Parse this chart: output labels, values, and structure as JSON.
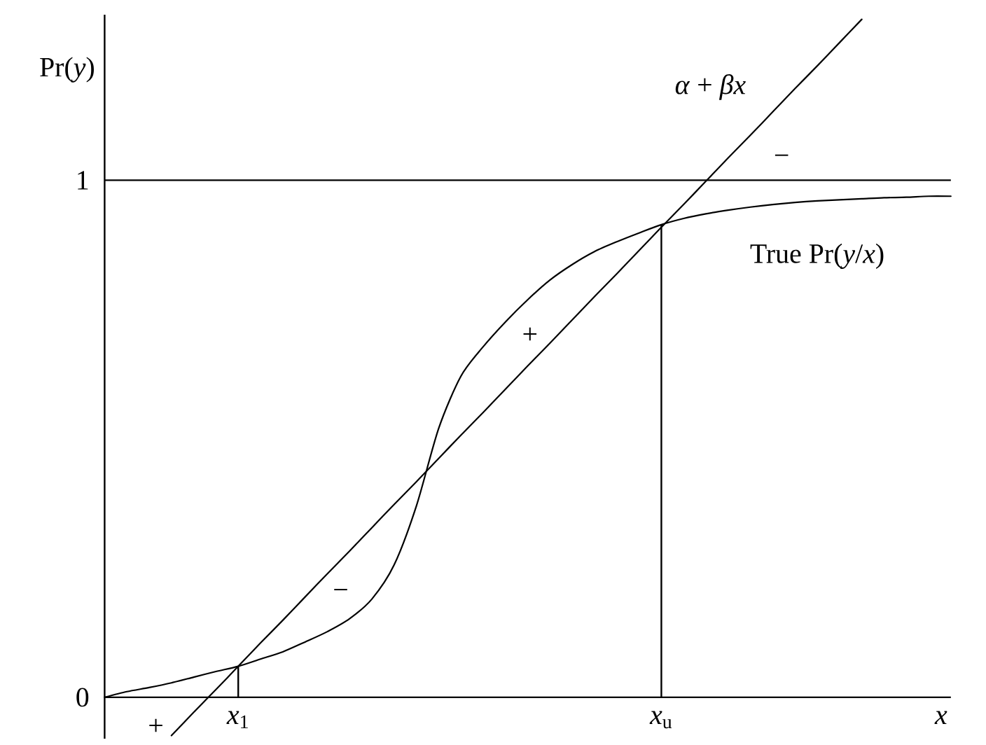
{
  "chart_data": {
    "type": "line",
    "xlabel": "x",
    "ylabel": "Pr(*y*)",
    "categories": [
      null,
      null,
      null,
      null,
      null,
      null,
      "*x*$_{1}$",
      null,
      null,
      null,
      null,
      null,
      null,
      null,
      null,
      null,
      null,
      null,
      null,
      null,
      null,
      null,
      null,
      null,
      null,
      "*x*$_{u}$",
      null,
      null,
      null,
      null,
      null,
      null,
      null,
      null,
      null,
      null,
      null,
      null,
      null
    ],
    "ylim": [
      -0.08,
      1.32
    ],
    "yticks": [
      0,
      1
    ],
    "marker": "none",
    "line_style": "solid",
    "series": [
      {
        "name": "True Pr(*y*/*x*)",
        "color": "#000000",
        "values": [
          0,
          0.011,
          0.019,
          0.028,
          0.039,
          0.05,
          0.06,
          0.074,
          0.088,
          0.107,
          0.127,
          0.152,
          0.19,
          0.256,
          0.37,
          0.52,
          0.621,
          0.678,
          0.726,
          0.769,
          0.807,
          0.837,
          0.862,
          0.881,
          0.898,
          0.914,
          0.926,
          0.935,
          0.942,
          0.948,
          0.953,
          0.957,
          0.96,
          0.962,
          0.964,
          0.966,
          0.967,
          0.969,
          0.969
        ]
      },
      {
        "name": "*α* + *βx*",
        "color": "#000000",
        "values": [
          null,
          null,
          null,
          -0.074,
          -0.029,
          0.015,
          0.06,
          0.105,
          0.149,
          0.194,
          0.239,
          0.283,
          0.328,
          0.373,
          0.417,
          0.462,
          0.507,
          0.551,
          0.596,
          0.641,
          0.685,
          0.73,
          0.775,
          0.819,
          0.864,
          0.909,
          0.953,
          0.998,
          1.043,
          1.087,
          1.132,
          1.177,
          1.221,
          1.266,
          1.311,
          null,
          null,
          null,
          null
        ]
      },
      {
        "type": "bar",
        "color": "#000000",
        "values": [
          null,
          null,
          null,
          null,
          null,
          null,
          0.06,
          null,
          null,
          null,
          null,
          null,
          null,
          null,
          null,
          null,
          null,
          null,
          null,
          null,
          null,
          null,
          null,
          null,
          null,
          0.914,
          null,
          null,
          null,
          null,
          null,
          null,
          null,
          null,
          null,
          null,
          null,
          null,
          null
        ]
      }
    ],
    "ref_lines": [
      {
        "axis": "y",
        "value": 1,
        "color": "#000000"
      }
    ],
    "annotations": [
      "−",
      "+",
      "−",
      "+"
    ]
  }
}
